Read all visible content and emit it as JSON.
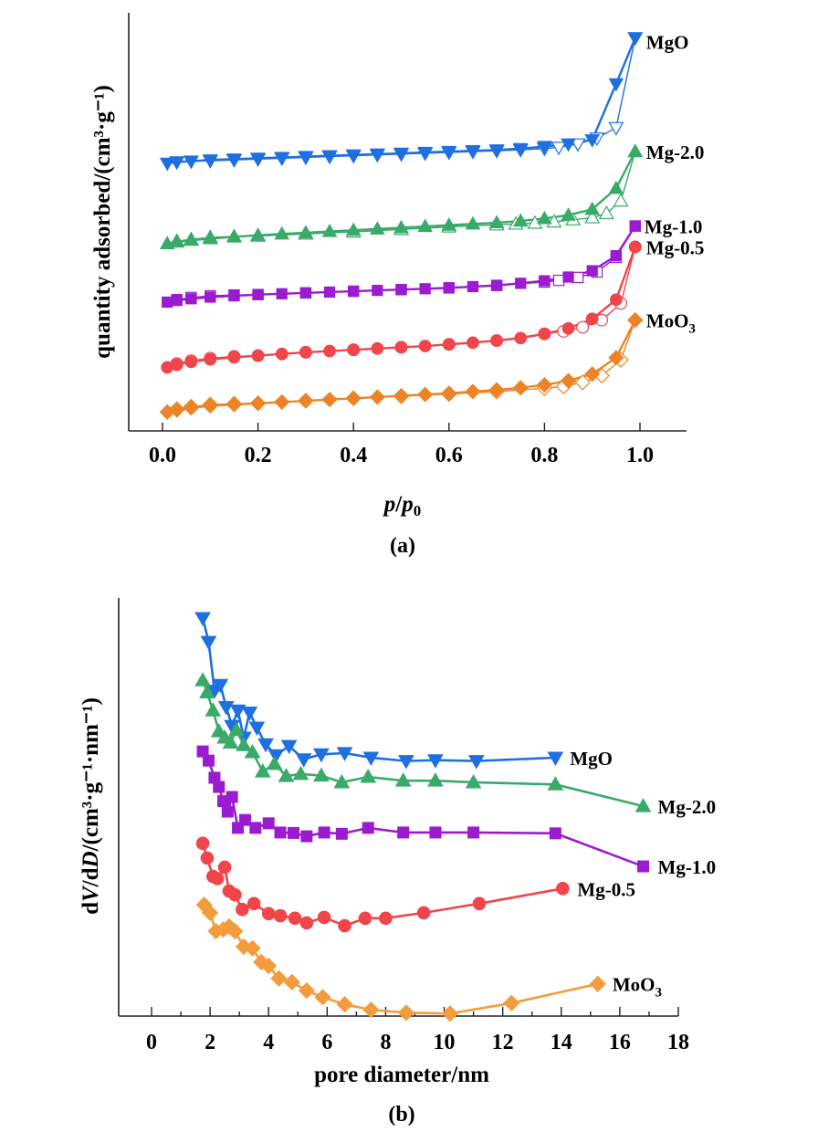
{
  "chart_data": [
    {
      "id": "a",
      "type": "line",
      "panel_label": "(a)",
      "title": "",
      "xlabel_italic_p": "p",
      "xlabel_slash": "/",
      "xlabel_p0": "p",
      "xlabel_sub": "0",
      "xlabel": "p/p0",
      "ylabel": "quantity adsorbed/(cm³·g⁻¹)",
      "xlim": [
        -0.12,
        1.12
      ],
      "ylim": [
        0,
        100
      ],
      "y_units": "arbitrary (offset curves, no y ticks)",
      "xticks": [
        0.0,
        0.2,
        0.4,
        0.6,
        0.8,
        1.0
      ],
      "xtick_labels": [
        "0.0",
        "0.2",
        "0.4",
        "0.6",
        "0.8",
        "1.0"
      ],
      "grid": false,
      "legend": "inline labels at right end of each curve",
      "series": [
        {
          "name": "MgO",
          "label": "MgO",
          "color": "#1f6fe0",
          "marker": "triangle-down",
          "adsorption": {
            "x": [
              0.01,
              0.03,
              0.06,
              0.1,
              0.15,
              0.2,
              0.25,
              0.3,
              0.35,
              0.4,
              0.45,
              0.5,
              0.55,
              0.6,
              0.65,
              0.7,
              0.75,
              0.8,
              0.85,
              0.9,
              0.95,
              0.99
            ],
            "y": [
              64.0,
              64.3,
              64.5,
              64.8,
              65.0,
              65.2,
              65.4,
              65.6,
              65.8,
              66.0,
              66.2,
              66.4,
              66.6,
              66.8,
              67.0,
              67.2,
              67.5,
              68.0,
              68.6,
              69.6,
              83.0,
              94.0
            ]
          },
          "desorption": {
            "x": [
              0.99,
              0.95,
              0.91,
              0.87,
              0.83,
              0.8,
              0.75,
              0.7,
              0.65,
              0.6,
              0.55,
              0.5,
              0.45,
              0.4,
              0.35,
              0.3,
              0.25,
              0.2,
              0.15,
              0.1,
              0.06,
              0.03
            ],
            "y": [
              94.0,
              72.5,
              70.0,
              68.6,
              67.8,
              67.5,
              67.2,
              67.0,
              66.8,
              66.6,
              66.4,
              66.2,
              66.0,
              65.8,
              65.6,
              65.4,
              65.2,
              65.0,
              64.8,
              64.6,
              64.5,
              64.3
            ]
          }
        },
        {
          "name": "Mg-2.0",
          "label": "Mg-2.0",
          "color": "#3aaa6a",
          "marker": "triangle-up",
          "adsorption": {
            "x": [
              0.01,
              0.03,
              0.06,
              0.1,
              0.15,
              0.2,
              0.25,
              0.3,
              0.35,
              0.4,
              0.45,
              0.5,
              0.55,
              0.6,
              0.65,
              0.7,
              0.75,
              0.8,
              0.85,
              0.9,
              0.95,
              0.99
            ],
            "y": [
              44.8,
              45.2,
              45.6,
              46.0,
              46.4,
              46.8,
              47.1,
              47.4,
              47.7,
              48.0,
              48.3,
              48.6,
              48.9,
              49.2,
              49.5,
              49.8,
              50.2,
              50.8,
              51.6,
              53.0,
              58.0,
              66.8
            ]
          },
          "desorption": {
            "x": [
              0.99,
              0.96,
              0.93,
              0.9,
              0.86,
              0.82,
              0.78,
              0.74,
              0.7,
              0.6,
              0.5,
              0.4,
              0.3,
              0.2,
              0.15,
              0.1,
              0.06,
              0.03
            ],
            "y": [
              66.8,
              55.0,
              52.0,
              51.0,
              50.5,
              50.0,
              49.7,
              49.5,
              49.3,
              48.8,
              48.2,
              47.6,
              47.1,
              46.6,
              46.5,
              46.3,
              45.8,
              45.4
            ]
          }
        },
        {
          "name": "Mg-1.0",
          "label": "Mg-1.0",
          "color": "#9b1bd0",
          "marker": "square",
          "adsorption": {
            "x": [
              0.01,
              0.03,
              0.06,
              0.1,
              0.15,
              0.2,
              0.25,
              0.3,
              0.35,
              0.4,
              0.45,
              0.5,
              0.55,
              0.6,
              0.65,
              0.7,
              0.75,
              0.8,
              0.85,
              0.9,
              0.95,
              0.99
            ],
            "y": [
              30.8,
              31.2,
              31.6,
              32.0,
              32.3,
              32.6,
              32.8,
              33.0,
              33.2,
              33.4,
              33.6,
              33.8,
              34.0,
              34.2,
              34.5,
              34.8,
              35.3,
              35.9,
              36.8,
              38.3,
              41.9,
              49.0
            ]
          },
          "desorption": {
            "x": [
              0.99,
              0.95,
              0.91,
              0.87,
              0.83,
              0.8,
              0.7,
              0.6,
              0.5,
              0.4,
              0.3,
              0.2,
              0.15,
              0.1,
              0.06,
              0.03
            ],
            "y": [
              49.0,
              41.5,
              38.0,
              36.7,
              36.0,
              35.6,
              34.8,
              34.2,
              33.8,
              33.4,
              33.0,
              32.6,
              32.5,
              32.3,
              31.9,
              31.4
            ]
          }
        },
        {
          "name": "Mg-0.5",
          "label": "Mg-0.5",
          "color": "#f0454a",
          "marker": "circle",
          "adsorption": {
            "x": [
              0.01,
              0.03,
              0.06,
              0.1,
              0.15,
              0.2,
              0.25,
              0.3,
              0.35,
              0.4,
              0.45,
              0.5,
              0.55,
              0.6,
              0.65,
              0.7,
              0.75,
              0.8,
              0.85,
              0.9,
              0.95,
              0.99
            ],
            "y": [
              15.2,
              15.8,
              16.5,
              17.1,
              17.6,
              18.0,
              18.4,
              18.8,
              19.1,
              19.4,
              19.7,
              20.0,
              20.3,
              20.7,
              21.1,
              21.6,
              22.2,
              23.2,
              24.5,
              26.8,
              31.4,
              44.0
            ]
          },
          "desorption": {
            "x": [
              0.99,
              0.96,
              0.92,
              0.88,
              0.84,
              0.8,
              0.7,
              0.6,
              0.5,
              0.4,
              0.3,
              0.2,
              0.15,
              0.1,
              0.06,
              0.03
            ],
            "y": [
              44.0,
              30.5,
              26.5,
              24.8,
              23.8,
              23.2,
              21.6,
              20.7,
              20.0,
              19.4,
              18.8,
              18.0,
              17.8,
              17.4,
              16.8,
              16.1
            ]
          }
        },
        {
          "name": "MoO3",
          "label": "MoO",
          "label_sub": "3",
          "color": "#ec8427",
          "marker": "diamond",
          "adsorption": {
            "x": [
              0.01,
              0.03,
              0.06,
              0.1,
              0.15,
              0.2,
              0.25,
              0.3,
              0.35,
              0.4,
              0.45,
              0.5,
              0.55,
              0.6,
              0.65,
              0.7,
              0.75,
              0.8,
              0.85,
              0.9,
              0.95,
              0.99
            ],
            "y": [
              4.5,
              5.0,
              5.5,
              6.0,
              6.3,
              6.6,
              6.9,
              7.2,
              7.5,
              7.8,
              8.1,
              8.4,
              8.7,
              9.0,
              9.4,
              9.8,
              10.3,
              11.0,
              12.0,
              13.6,
              17.5,
              26.5
            ]
          },
          "desorption": {
            "x": [
              0.99,
              0.96,
              0.92,
              0.88,
              0.84,
              0.8,
              0.7,
              0.6,
              0.5,
              0.4,
              0.3,
              0.2,
              0.15,
              0.1,
              0.06,
              0.03
            ],
            "y": [
              26.5,
              17.0,
              13.2,
              11.6,
              10.6,
              10.2,
              9.4,
              8.8,
              8.3,
              7.8,
              7.2,
              6.6,
              6.5,
              6.3,
              5.8,
              5.2
            ]
          }
        }
      ]
    },
    {
      "id": "b",
      "type": "line",
      "panel_label": "(b)",
      "title": "",
      "xlabel": "pore diameter/nm",
      "ylabel": "dV/dD/(cm³·g⁻¹·nm⁻¹)",
      "ylabel_d1": "d",
      "ylabel_V": "V",
      "ylabel_mid": "/d",
      "ylabel_D": "D",
      "ylabel_rest": "/(cm³·g⁻¹·nm⁻¹)",
      "xlim": [
        -1.1,
        18
      ],
      "ylim": [
        0,
        100
      ],
      "y_units": "arbitrary (offset curves, no y ticks)",
      "xticks": [
        0,
        2,
        4,
        6,
        8,
        10,
        12,
        14,
        16,
        18
      ],
      "xtick_labels": [
        "0",
        "2",
        "4",
        "6",
        "8",
        "10",
        "12",
        "14",
        "16",
        "18"
      ],
      "grid": false,
      "legend": "inline labels at right end of each curve",
      "series": [
        {
          "name": "MgO",
          "label": "MgO",
          "color": "#1f6fe0",
          "marker": "triangle-down",
          "x": [
            1.75,
            1.95,
            2.15,
            2.35,
            2.55,
            2.75,
            2.95,
            3.15,
            3.35,
            3.6,
            3.9,
            4.25,
            4.7,
            5.2,
            5.8,
            6.6,
            7.5,
            8.7,
            9.7,
            11.1,
            13.8
          ],
          "y": [
            95.2,
            89.5,
            77.8,
            79.2,
            73.9,
            69.4,
            73.1,
            66.6,
            72.6,
            69.0,
            65.0,
            62.4,
            64.6,
            61.4,
            62.6,
            62.9,
            61.8,
            61.0,
            61.2,
            61.0,
            61.8
          ]
        },
        {
          "name": "Mg-2.0",
          "label": "Mg-2.0",
          "color": "#3aaa6a",
          "marker": "triangle-up",
          "x": [
            1.75,
            1.9,
            2.1,
            2.3,
            2.5,
            2.7,
            2.9,
            3.15,
            3.45,
            3.8,
            4.2,
            4.6,
            5.1,
            5.8,
            6.5,
            7.4,
            8.6,
            9.7,
            11.0,
            13.8,
            16.8
          ],
          "y": [
            80.3,
            77.4,
            73.1,
            68.1,
            66.6,
            65.4,
            68.4,
            64.8,
            63.1,
            58.5,
            60.3,
            57.4,
            57.9,
            57.5,
            55.9,
            57.2,
            56.3,
            56.3,
            55.9,
            55.4,
            50.2
          ]
        },
        {
          "name": "Mg-1.0",
          "label": "Mg-1.0",
          "color": "#9b1bd0",
          "marker": "square",
          "x": [
            1.75,
            1.95,
            2.15,
            2.3,
            2.45,
            2.6,
            2.75,
            2.95,
            3.2,
            3.55,
            4.0,
            4.4,
            4.85,
            5.3,
            5.9,
            6.5,
            7.4,
            8.6,
            9.7,
            11.0,
            13.8,
            16.8
          ],
          "y": [
            63.3,
            61.1,
            57.0,
            54.8,
            51.4,
            48.9,
            52.4,
            45.0,
            46.9,
            45.0,
            46.1,
            43.9,
            43.8,
            43.0,
            43.9,
            43.6,
            45.0,
            43.9,
            43.9,
            43.9,
            43.7,
            35.8
          ]
        },
        {
          "name": "Mg-0.5",
          "label": "Mg-0.5",
          "color": "#f0454a",
          "marker": "circle",
          "x": [
            1.75,
            1.9,
            2.1,
            2.25,
            2.5,
            2.65,
            2.85,
            3.1,
            3.5,
            4.0,
            4.4,
            4.9,
            5.3,
            5.9,
            6.6,
            7.3,
            8.0,
            9.3,
            11.2,
            14.05
          ],
          "y": [
            41.3,
            37.8,
            33.4,
            32.9,
            35.6,
            29.9,
            29.0,
            25.5,
            26.9,
            24.5,
            24.0,
            23.4,
            22.3,
            23.6,
            21.6,
            23.4,
            23.4,
            24.7,
            26.9,
            30.5
          ]
        },
        {
          "name": "MoO3",
          "label": "MoO",
          "label_sub": "3",
          "color": "#f39c3d",
          "marker": "diamond",
          "x": [
            1.8,
            2.0,
            2.2,
            2.45,
            2.65,
            2.85,
            3.15,
            3.45,
            3.75,
            4.0,
            4.35,
            4.8,
            5.3,
            5.85,
            6.6,
            7.5,
            8.7,
            10.2,
            12.3,
            15.25
          ],
          "y": [
            26.6,
            24.7,
            20.3,
            20.7,
            21.4,
            20.3,
            16.6,
            16.2,
            12.9,
            12.0,
            9.0,
            8.1,
            6.1,
            4.5,
            2.8,
            1.5,
            0.8,
            0.6,
            3.1,
            7.7
          ]
        }
      ]
    }
  ]
}
